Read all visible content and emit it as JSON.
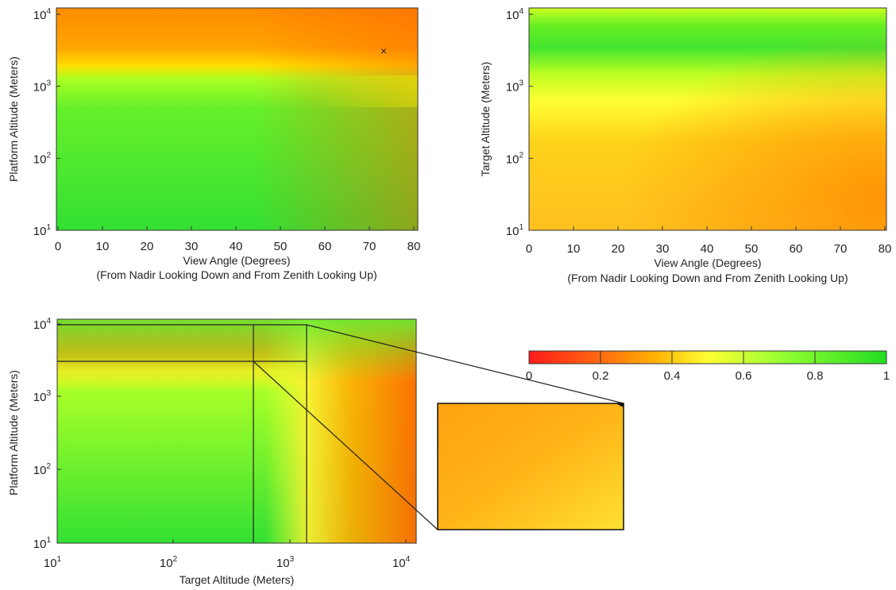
{
  "colors": {
    "scale": [
      "#ff1a1a",
      "#ff9900",
      "#ffff33",
      "#99ff33",
      "#22dd22"
    ],
    "frame": "#333333"
  },
  "colorbar": {
    "ticks": [
      "0",
      "0.2",
      "0.4",
      "0.6",
      "0.8",
      "1"
    ],
    "range": [
      0,
      1
    ]
  },
  "chart_data": [
    {
      "type": "heatmap",
      "xlabel": "View Angle (Degrees)",
      "xlabel2": "(From Nadir Looking Down and From Zenith Looking Up)",
      "ylabel": "Platform Altitude (Meters)",
      "xlim": [
        0,
        80
      ],
      "ylim": [
        10,
        10000
      ],
      "yscale": "log",
      "xticks": [
        "0",
        "10",
        "20",
        "30",
        "40",
        "50",
        "60",
        "70",
        "80"
      ],
      "yticks": [
        {
          "base": "10",
          "exp": "1"
        },
        {
          "base": "10",
          "exp": "2"
        },
        {
          "base": "10",
          "exp": "3"
        },
        {
          "base": "10",
          "exp": "4"
        }
      ],
      "marker": {
        "x": 73,
        "y": 3000,
        "symbol": "×"
      },
      "description_values": {
        "low_altitude": 0.85,
        "high_altitude": 0.3
      }
    },
    {
      "type": "heatmap",
      "xlabel": "View Angle (Degrees)",
      "xlabel2": "(From Nadir Looking Down and From Zenith Looking Up)",
      "ylabel": "Target Altitude (Meters)",
      "xlim": [
        0,
        80
      ],
      "ylim": [
        10,
        10000
      ],
      "yscale": "log",
      "xticks": [
        "0",
        "10",
        "20",
        "30",
        "40",
        "50",
        "60",
        "70",
        "80"
      ],
      "yticks": [
        {
          "base": "10",
          "exp": "1"
        },
        {
          "base": "10",
          "exp": "2"
        },
        {
          "base": "10",
          "exp": "3"
        },
        {
          "base": "10",
          "exp": "4"
        }
      ]
    },
    {
      "type": "heatmap",
      "xlabel": "Target Altitude (Meters)",
      "ylabel": "Platform Altitude (Meters)",
      "xlim": [
        10,
        12000
      ],
      "ylim": [
        10,
        12000
      ],
      "xscale": "log",
      "yscale": "log",
      "xticks": [
        {
          "base": "10",
          "exp": "1"
        },
        {
          "base": "10",
          "exp": "2"
        },
        {
          "base": "10",
          "exp": "3"
        },
        {
          "base": "10",
          "exp": "4"
        }
      ],
      "yticks": [
        {
          "base": "10",
          "exp": "1"
        },
        {
          "base": "10",
          "exp": "2"
        },
        {
          "base": "10",
          "exp": "3"
        },
        {
          "base": "10",
          "exp": "4"
        }
      ],
      "zoom_region": {
        "x": [
          500,
          1400
        ],
        "y": [
          3000,
          10000
        ]
      }
    }
  ]
}
